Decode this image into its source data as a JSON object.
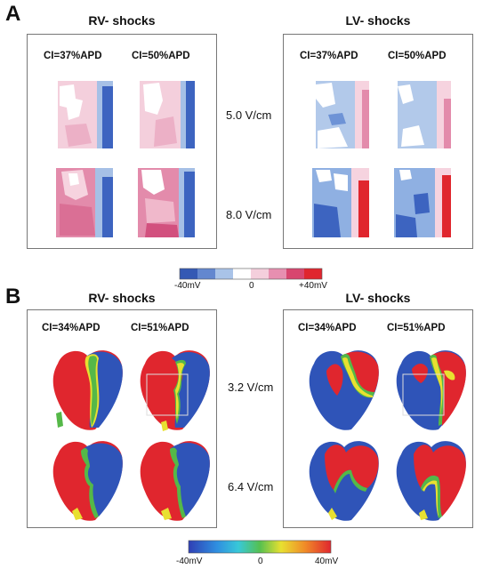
{
  "panelA": {
    "letter": "A",
    "rv": {
      "title": "RV- shocks",
      "ci_left": "CI=37%APD",
      "ci_right": "CI=50%APD"
    },
    "lv": {
      "title": "LV- shocks",
      "ci_left": "CI=37%APD",
      "ci_right": "CI=50%APD"
    },
    "field_top": "5.0 V/cm",
    "field_bottom": "8.0 V/cm",
    "colorbar": {
      "min_label": "-40mV",
      "mid_label": "0",
      "max_label": "+40mV"
    }
  },
  "panelB": {
    "letter": "B",
    "rv": {
      "title": "RV- shocks",
      "ci_left": "CI=34%APD",
      "ci_right": "CI=51%APD"
    },
    "lv": {
      "title": "LV- shocks",
      "ci_left": "CI=34%APD",
      "ci_right": "CI=51%APD"
    },
    "field_top": "3.2 V/cm",
    "field_bottom": "6.4 V/cm",
    "colorbar": {
      "min_label": "-40mV",
      "mid_label": "0",
      "max_label": "40mV"
    }
  },
  "colors": {
    "depolarized": "#e0262e",
    "hyperpolarized": "#2f54b8",
    "pink_light": "#f2c6d6",
    "blue_light": "#a9c3e8",
    "green": "#55b848",
    "yellow": "#e8e030"
  }
}
